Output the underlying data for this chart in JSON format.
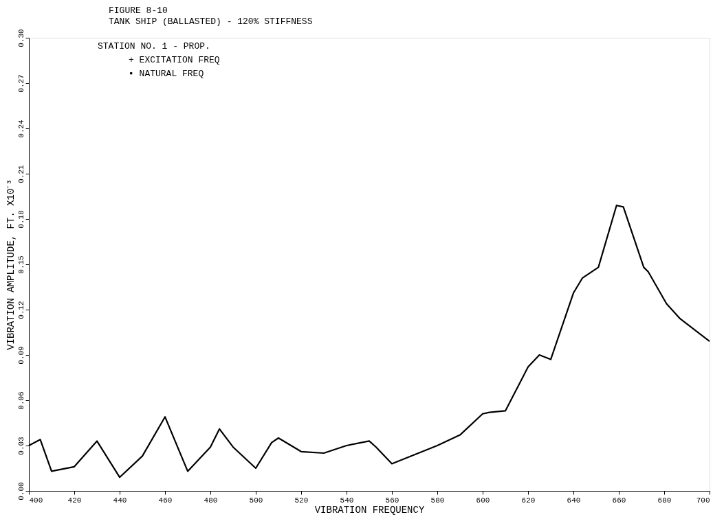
{
  "chart_data": {
    "type": "line",
    "title": "FIGURE 8-10",
    "subtitle": "TANK SHIP (BALLASTED) - 120% STIFFNESS",
    "annotations": [
      "STATION NO. 1 - PROP.",
      "+  EXCITATION FREQ",
      "▪  NATURAL FREQ"
    ],
    "xlabel": "VIBRATION FREQUENCY",
    "ylabel": "VIBRATION AMPLITUDE, FT. X10⁻³",
    "x": [
      400,
      405,
      410,
      420,
      430,
      440,
      450,
      460,
      470,
      480,
      484,
      490,
      500,
      507,
      510,
      520,
      530,
      540,
      550,
      553,
      560,
      580,
      590,
      600,
      603,
      610,
      620,
      625,
      630,
      640,
      644,
      651,
      659,
      662,
      671,
      673,
      681,
      687,
      700
    ],
    "series": [
      {
        "color": "#000000",
        "values": [
          0.03,
          0.034,
          0.013,
          0.016,
          0.033,
          0.009,
          0.023,
          0.049,
          0.013,
          0.029,
          0.041,
          0.029,
          0.015,
          0.032,
          0.035,
          0.026,
          0.025,
          0.03,
          0.033,
          0.029,
          0.018,
          0.03,
          0.037,
          0.051,
          0.052,
          0.053,
          0.082,
          0.09,
          0.087,
          0.131,
          0.141,
          0.148,
          0.189,
          0.188,
          0.148,
          0.145,
          0.124,
          0.114,
          0.099
        ]
      }
    ],
    "xlim": [
      400,
      700
    ],
    "xticks": [
      400,
      420,
      440,
      460,
      480,
      500,
      520,
      540,
      560,
      580,
      600,
      620,
      640,
      660,
      680,
      700
    ],
    "ylim": [
      0,
      0.3
    ],
    "yticks": [
      {
        "value": 0,
        "label": "0.00"
      },
      0.03,
      0.06,
      0.09,
      0.12,
      0.15,
      0.18,
      0.21,
      0.24,
      0.27,
      {
        "value": 0.3,
        "label": "0.30"
      }
    ],
    "grid": false,
    "marker": "none",
    "line_style": "solid"
  }
}
